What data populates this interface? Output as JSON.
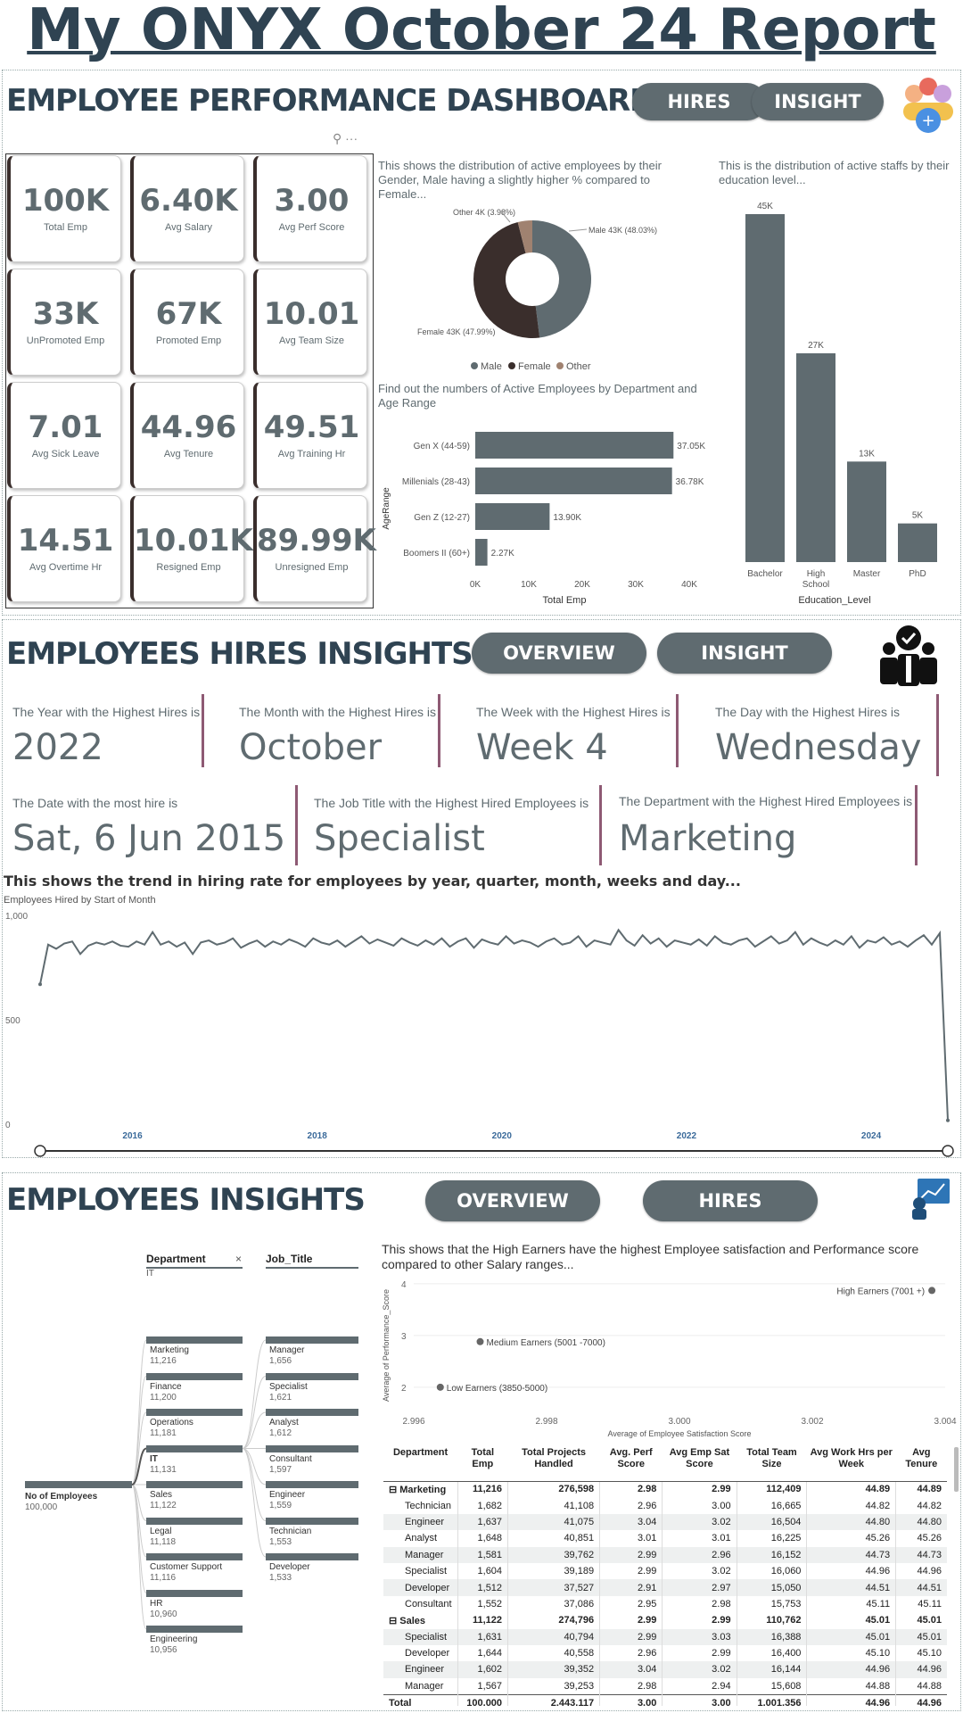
{
  "report_title": "My ONYX October 24 Report",
  "dashboard": {
    "title": "EMPLOYEE PERFORMANCE DASHBOARD",
    "buttons": [
      "HIRES",
      "INSIGHT"
    ],
    "kpis": [
      {
        "value": "100K",
        "label": "Total Emp"
      },
      {
        "value": "6.40K",
        "label": "Avg Salary"
      },
      {
        "value": "3.00",
        "label": "Avg Perf Score"
      },
      {
        "value": "33K",
        "label": "UnPromoted Emp"
      },
      {
        "value": "67K",
        "label": "Promoted Emp"
      },
      {
        "value": "10.01",
        "label": "Avg Team Size"
      },
      {
        "value": "7.01",
        "label": "Avg Sick Leave"
      },
      {
        "value": "44.96",
        "label": "Avg Tenure"
      },
      {
        "value": "49.51",
        "label": "Avg Training Hr"
      },
      {
        "value": "14.51",
        "label": "Avg Overtime Hr"
      },
      {
        "value": "10.01K",
        "label": "Resigned Emp"
      },
      {
        "value": "89.99K",
        "label": "Unresigned Emp"
      }
    ],
    "gender_desc": "This shows the distribution of active employees by their Gender, Male having a slightly higher % compared to Female...",
    "edu_desc": "This is the distribution of active staffs by their education level...",
    "age_desc": "Find out the numbers of Active Employees by Department and Age Range"
  },
  "hires": {
    "title": "EMPLOYEES HIRES INSIGHTS",
    "buttons": [
      "OVERVIEW",
      "INSIGHT"
    ],
    "cards": [
      {
        "label": "The Year with the Highest Hires is",
        "value": "2022"
      },
      {
        "label": "The Month with the Highest Hires is",
        "value": "October"
      },
      {
        "label": "The Week with the Highest Hires is",
        "value": "Week 4"
      },
      {
        "label": "The Day with the Highest Hires is",
        "value": "Wednesday"
      },
      {
        "label": "The Date with the most hire is",
        "value": "Sat, 6 Jun 2015"
      },
      {
        "label": "The Job Title with the Highest Hired Employees is",
        "value": "Specialist"
      },
      {
        "label": "The Department with the Highest Hired Employees is",
        "value": "Marketing"
      }
    ],
    "trend_desc": "This shows the trend in hiring rate for employees by year, quarter, month, weeks and day..."
  },
  "insights": {
    "title": "EMPLOYEES INSIGHTS",
    "buttons": [
      "OVERVIEW",
      "HIRES"
    ],
    "scatter_desc": "This shows that the High Earners have the highest Employee satisfaction and Performance score compared to other Salary ranges...",
    "tree": {
      "root_label": "No of Employees",
      "root_value": "100,000",
      "dept_header": "Department",
      "dept_filter": "IT",
      "job_header": "Job_Title",
      "close": "×",
      "departments": [
        {
          "name": "Marketing",
          "value": "11,216"
        },
        {
          "name": "Finance",
          "value": "11,200"
        },
        {
          "name": "Operations",
          "value": "11,181"
        },
        {
          "name": "IT",
          "value": "11,131"
        },
        {
          "name": "Sales",
          "value": "11,122"
        },
        {
          "name": "Legal",
          "value": "11,118"
        },
        {
          "name": "Customer Support",
          "value": "11,116"
        },
        {
          "name": "HR",
          "value": "10,960"
        },
        {
          "name": "Engineering",
          "value": "10,956"
        }
      ],
      "jobs": [
        {
          "name": "Manager",
          "value": "1,656"
        },
        {
          "name": "Specialist",
          "value": "1,621"
        },
        {
          "name": "Analyst",
          "value": "1,612"
        },
        {
          "name": "Consultant",
          "value": "1,597"
        },
        {
          "name": "Engineer",
          "value": "1,559"
        },
        {
          "name": "Technician",
          "value": "1,553"
        },
        {
          "name": "Developer",
          "value": "1,533"
        }
      ]
    },
    "table": {
      "headers": [
        "Department",
        "Total Emp",
        "Total Projects Handled",
        "Avg. Perf Score",
        "Avg Emp Sat Score",
        "Total Team Size",
        "Avg Work Hrs per Week",
        "Avg Tenure"
      ],
      "rows": [
        {
          "kind": "grp",
          "cells": [
            "⊟ Marketing",
            "11,216",
            "276,598",
            "2.98",
            "2.99",
            "112,409",
            "44.89",
            "44.89"
          ]
        },
        {
          "kind": "sub",
          "cells": [
            "Technician",
            "1,682",
            "41,108",
            "2.96",
            "3.00",
            "16,665",
            "44.82",
            "44.82"
          ]
        },
        {
          "kind": "sub",
          "cells": [
            "Engineer",
            "1,637",
            "41,075",
            "3.04",
            "3.02",
            "16,504",
            "44.80",
            "44.80"
          ]
        },
        {
          "kind": "sub",
          "cells": [
            "Analyst",
            "1,648",
            "40,851",
            "3.01",
            "3.01",
            "16,225",
            "45.26",
            "45.26"
          ]
        },
        {
          "kind": "sub",
          "cells": [
            "Manager",
            "1,581",
            "39,762",
            "2.99",
            "2.96",
            "16,152",
            "44.73",
            "44.73"
          ]
        },
        {
          "kind": "sub",
          "cells": [
            "Specialist",
            "1,604",
            "39,189",
            "2.99",
            "3.02",
            "16,060",
            "44.96",
            "44.96"
          ]
        },
        {
          "kind": "sub",
          "cells": [
            "Developer",
            "1,512",
            "37,527",
            "2.91",
            "2.97",
            "15,050",
            "44.51",
            "44.51"
          ]
        },
        {
          "kind": "sub",
          "cells": [
            "Consultant",
            "1,552",
            "37,086",
            "2.95",
            "2.98",
            "15,753",
            "45.11",
            "45.11"
          ]
        },
        {
          "kind": "grp",
          "cells": [
            "⊟ Sales",
            "11,122",
            "274,796",
            "2.99",
            "2.99",
            "110,762",
            "45.01",
            "45.01"
          ]
        },
        {
          "kind": "sub",
          "cells": [
            "Specialist",
            "1,631",
            "40,794",
            "2.99",
            "3.03",
            "16,388",
            "45.01",
            "45.01"
          ]
        },
        {
          "kind": "sub",
          "cells": [
            "Developer",
            "1,644",
            "40,558",
            "2.96",
            "2.99",
            "16,400",
            "45.10",
            "45.10"
          ]
        },
        {
          "kind": "sub",
          "cells": [
            "Engineer",
            "1,602",
            "39,352",
            "3.04",
            "3.02",
            "16,144",
            "44.96",
            "44.96"
          ]
        },
        {
          "kind": "sub",
          "cells": [
            "Manager",
            "1,567",
            "39,253",
            "2.98",
            "2.94",
            "15,608",
            "44.88",
            "44.88"
          ]
        },
        {
          "kind": "tot",
          "cells": [
            "Total",
            "100,000",
            "2,443,117",
            "3.00",
            "3.00",
            "1,001,356",
            "44.96",
            "44.96"
          ]
        }
      ]
    }
  },
  "chart_data": [
    {
      "type": "pie",
      "title": "",
      "categories": [
        "Male",
        "Female",
        "Other"
      ],
      "values": [
        43,
        43,
        4
      ],
      "labels": [
        "Male 43K (48.03%)",
        "Female 43K (47.99%)",
        "Other 4K (3.98%)"
      ],
      "percents": [
        48.03,
        47.99,
        3.98
      ],
      "colors": [
        "#5f6b70",
        "#3a2e2c",
        "#a08270"
      ],
      "legend": [
        "Male",
        "Female",
        "Other"
      ]
    },
    {
      "type": "bar",
      "orientation": "horizontal",
      "categories": [
        "Gen X (44-59)",
        "Millenials (28-43)",
        "Gen Z (12-27)",
        "Boomers II (60+)"
      ],
      "values": [
        37.05,
        36.78,
        13.9,
        2.27
      ],
      "value_labels": [
        "37.05K",
        "36.78K",
        "13.90K",
        "2.27K"
      ],
      "xlabel": "Total Emp",
      "ylabel": "AgeRange",
      "xticks": [
        "0K",
        "10K",
        "20K",
        "30K",
        "40K"
      ],
      "xlim": [
        0,
        40
      ]
    },
    {
      "type": "bar",
      "categories": [
        "Bachelor",
        "High School",
        "Master",
        "PhD"
      ],
      "values": [
        45,
        27,
        13,
        5
      ],
      "value_labels": [
        "45K",
        "27K",
        "13K",
        "5K"
      ],
      "xlabel": "Education_Level",
      "ylim": [
        0,
        45
      ]
    },
    {
      "type": "line",
      "title": "Employees Hired by Start of Month",
      "yticks": [
        "0",
        "500",
        "1,000"
      ],
      "ylim": [
        0,
        1000
      ],
      "xticks": [
        "2016",
        "2018",
        "2020",
        "2022",
        "2024"
      ],
      "xlim": [
        2015,
        2024.83
      ],
      "values": [
        670,
        860,
        840,
        865,
        875,
        815,
        855,
        870,
        860,
        875,
        855,
        850,
        875,
        860,
        920,
        860,
        875,
        850,
        870,
        815,
        870,
        880,
        860,
        870,
        890,
        845,
        865,
        880,
        850,
        875,
        860,
        885,
        870,
        850,
        890,
        870,
        860,
        880,
        850,
        875,
        900,
        865,
        885,
        870,
        855,
        890,
        870,
        855,
        880,
        860,
        890,
        850,
        875,
        890,
        845,
        885,
        870,
        860,
        900,
        865,
        880,
        870,
        850,
        875,
        890,
        860,
        870,
        900,
        850,
        880,
        870,
        860,
        930,
        880,
        855,
        905,
        865,
        890,
        850,
        880,
        870,
        860,
        885,
        855,
        900,
        870,
        860,
        880,
        890,
        850,
        875,
        900,
        865,
        880,
        920,
        860,
        890,
        870,
        855,
        880,
        860,
        900,
        845,
        880,
        870,
        895,
        860,
        875,
        850,
        880,
        905,
        860,
        915,
        18
      ]
    },
    {
      "type": "scatter",
      "xlabel": "Average of Employee  Satisfaction  Score",
      "ylabel": "Average of Performance_Score",
      "xlim": [
        2.996,
        3.004
      ],
      "ylim": [
        1.6,
        4.05
      ],
      "xticks": [
        "2.996",
        "2.998",
        "3.000",
        "3.002",
        "3.004"
      ],
      "yticks": [
        "2",
        "3",
        "4"
      ],
      "points": [
        {
          "label": "Low Earners (3850-5000)",
          "x": 2.9964,
          "y": 2.0
        },
        {
          "label": "Medium Earners (5001 -7000)",
          "x": 2.997,
          "y": 2.88
        },
        {
          "label": "High Earners (7001 +)",
          "x": 3.0038,
          "y": 3.87
        }
      ]
    }
  ]
}
